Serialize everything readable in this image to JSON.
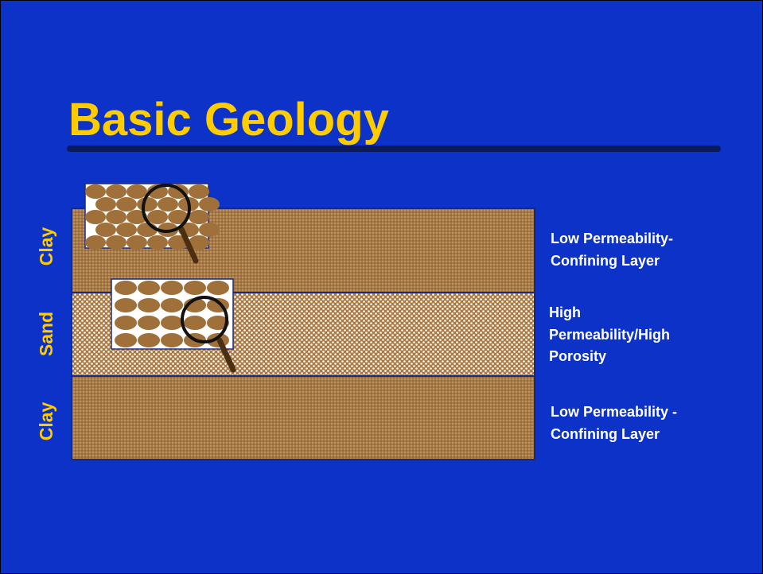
{
  "title": "Basic Geology",
  "layers": [
    {
      "label": "Clay",
      "description": [
        "Low Permeability-",
        "Confining Layer"
      ]
    },
    {
      "label": "Sand",
      "description": [
        "High",
        "Permeability/High",
        "Porosity"
      ]
    },
    {
      "label": "Clay",
      "description": [
        "Low Permeability -",
        "Confining Layer"
      ]
    }
  ]
}
